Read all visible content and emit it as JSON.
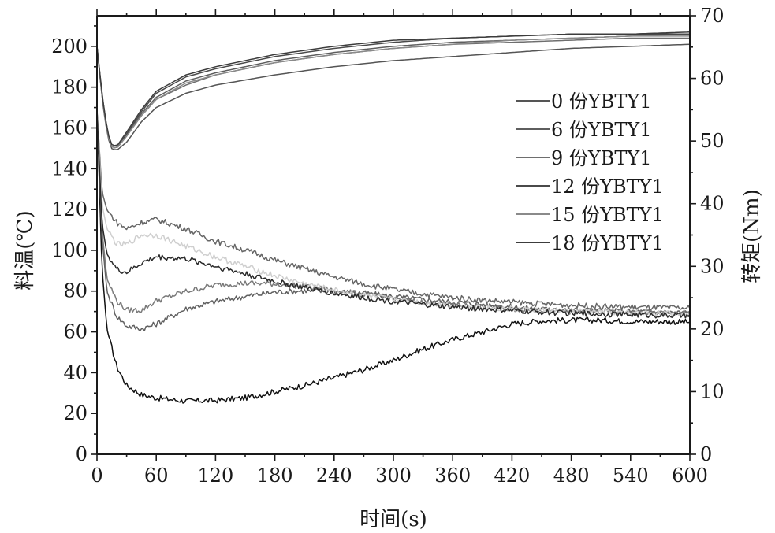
{
  "chart_data": {
    "type": "line",
    "xlabel": "时间(s)",
    "ylabel_left": "料温(℃)",
    "ylabel_right": "转矩(Nm)",
    "xlim": [
      0,
      600
    ],
    "ylim_left": [
      0,
      215
    ],
    "ylim_right": [
      0,
      70
    ],
    "x_ticks": [
      0,
      60,
      120,
      180,
      240,
      300,
      360,
      420,
      480,
      540,
      600
    ],
    "y_left_ticks": [
      0,
      20,
      40,
      60,
      80,
      100,
      120,
      140,
      160,
      180,
      200
    ],
    "y_right_ticks": [
      0,
      10,
      20,
      30,
      40,
      50,
      60,
      70
    ],
    "grid": false,
    "legend_position": "right",
    "temperature_series": [
      {
        "name": "0 份YBTY1",
        "color": "#555555",
        "x": [
          0,
          5,
          10,
          14,
          20,
          30,
          45,
          60,
          90,
          120,
          180,
          240,
          300,
          360,
          420,
          480,
          540,
          600
        ],
        "y": [
          200,
          175,
          158,
          150,
          149,
          153,
          163,
          170,
          177,
          181,
          186,
          190,
          193,
          195,
          197,
          199,
          200,
          201
        ]
      },
      {
        "name": "6 份YBTY1",
        "color": "#5e5e5e",
        "x": [
          0,
          5,
          10,
          14,
          20,
          30,
          45,
          60,
          90,
          120,
          180,
          240,
          300,
          360,
          420,
          480,
          540,
          600
        ],
        "y": [
          200,
          176,
          159,
          151,
          150,
          156,
          167,
          175,
          183,
          187,
          193,
          197,
          200,
          202,
          203,
          204,
          205,
          206
        ]
      },
      {
        "name": "9 份YBTY1",
        "color": "#6e6e6e",
        "x": [
          0,
          5,
          10,
          14,
          20,
          30,
          45,
          60,
          90,
          120,
          180,
          240,
          300,
          360,
          420,
          480,
          540,
          600
        ],
        "y": [
          200,
          176,
          159,
          151,
          150,
          156,
          166,
          174,
          181,
          186,
          192,
          196,
          199,
          201,
          202,
          203,
          204,
          204
        ]
      },
      {
        "name": "12 份YBTY1",
        "color": "#4a4a4a",
        "x": [
          0,
          5,
          10,
          14,
          20,
          30,
          45,
          60,
          90,
          120,
          180,
          240,
          300,
          360,
          420,
          480,
          540,
          600
        ],
        "y": [
          200,
          177,
          160,
          151,
          150,
          157,
          168,
          177,
          185,
          189,
          195,
          199,
          202,
          204,
          205,
          206,
          206,
          206
        ]
      },
      {
        "name": "15 份YBTY1",
        "color": "#8a8a8a",
        "x": [
          0,
          5,
          10,
          14,
          20,
          30,
          45,
          60,
          90,
          120,
          180,
          240,
          300,
          360,
          420,
          480,
          540,
          600
        ],
        "y": [
          200,
          176,
          159,
          151,
          150,
          156,
          166,
          174,
          182,
          186,
          192,
          196,
          199,
          201,
          203,
          204,
          205,
          205
        ]
      },
      {
        "name": "18 份YBTY1",
        "color": "#3c3c3c",
        "x": [
          0,
          5,
          10,
          14,
          20,
          30,
          45,
          60,
          90,
          120,
          180,
          240,
          300,
          360,
          420,
          480,
          540,
          600
        ],
        "y": [
          200,
          177,
          160,
          152,
          151,
          158,
          169,
          178,
          186,
          190,
          196,
          200,
          203,
          204,
          205,
          206,
          206,
          207
        ]
      }
    ],
    "torque_series": [
      {
        "name": "0 份YBTY1",
        "color": "#111111",
        "x": [
          0,
          5,
          10,
          20,
          30,
          45,
          60,
          90,
          120,
          150,
          180,
          210,
          240,
          270,
          300,
          330,
          360,
          390,
          420,
          450,
          480,
          510,
          540,
          570,
          600
        ],
        "y": [
          55,
          30,
          20,
          14,
          11,
          9.5,
          9,
          8.5,
          8.6,
          9,
          10,
          11,
          12.2,
          13.5,
          15,
          16.8,
          18.3,
          19.5,
          20.8,
          21.3,
          21.4,
          21.4,
          21.2,
          21.2,
          21.1
        ]
      },
      {
        "name": "6 份YBTY1",
        "color": "#606060",
        "x": [
          0,
          5,
          10,
          20,
          30,
          45,
          60,
          90,
          120,
          150,
          180,
          210,
          240,
          270,
          300,
          330,
          360,
          390,
          420,
          450,
          480,
          510,
          540,
          570,
          600
        ],
        "y": [
          55,
          35,
          26,
          22,
          20.5,
          20,
          20.8,
          23.2,
          24.4,
          25.2,
          25.9,
          26.1,
          26,
          25.7,
          25.2,
          24.7,
          24.3,
          23.9,
          23.5,
          23.2,
          23,
          22.9,
          22.8,
          22.7,
          22.6
        ]
      },
      {
        "name": "9 份YBTY1",
        "color": "#7a7a7a",
        "x": [
          0,
          5,
          10,
          20,
          30,
          45,
          60,
          90,
          120,
          150,
          180,
          210,
          240,
          270,
          300,
          330,
          360,
          390,
          420,
          450,
          480,
          510,
          540,
          570,
          600
        ],
        "y": [
          55,
          36,
          28,
          24.5,
          23,
          23,
          24.5,
          26,
          27,
          27.3,
          27.2,
          26.8,
          26.2,
          25.5,
          24.9,
          24.3,
          23.9,
          23.5,
          23.2,
          23,
          22.8,
          22.7,
          22.6,
          22.6,
          22.5
        ]
      },
      {
        "name": "12 份YBTY1",
        "color": "#666666",
        "x": [
          0,
          5,
          10,
          20,
          30,
          45,
          60,
          90,
          120,
          150,
          180,
          210,
          240,
          270,
          300,
          330,
          360,
          390,
          420,
          450,
          480,
          510,
          540,
          570,
          600
        ],
        "y": [
          55,
          42,
          39,
          37,
          36,
          37,
          37.5,
          36,
          34,
          32.6,
          31,
          29.6,
          28.3,
          27.2,
          26.3,
          25.6,
          25,
          24.6,
          24.3,
          24,
          23.8,
          23.6,
          23.5,
          23.4,
          23.3
        ]
      },
      {
        "name": "15 份YBTY1",
        "color": "#cfcfcf",
        "x": [
          0,
          5,
          10,
          20,
          30,
          45,
          60,
          90,
          120,
          150,
          180,
          210,
          240,
          270,
          300,
          330,
          360,
          390,
          420,
          450,
          480,
          510,
          540,
          570,
          600
        ],
        "y": [
          55,
          40,
          36,
          33.5,
          33.5,
          35,
          35,
          33.2,
          31.5,
          30,
          28.5,
          27.2,
          26.2,
          25.4,
          24.7,
          24.2,
          23.8,
          23.4,
          23.2,
          23,
          22.8,
          22.7,
          22.6,
          22.5,
          22.4
        ]
      },
      {
        "name": "18 份YBTY1",
        "color": "#2a2a2a",
        "x": [
          0,
          5,
          10,
          20,
          30,
          45,
          60,
          90,
          120,
          150,
          180,
          210,
          240,
          270,
          300,
          330,
          360,
          390,
          420,
          450,
          480,
          510,
          540,
          570,
          600
        ],
        "y": [
          55,
          37,
          32,
          29.5,
          29,
          30.5,
          31.5,
          31.2,
          30,
          28.8,
          27.6,
          26.6,
          25.7,
          25,
          24.4,
          23.9,
          23.5,
          23.2,
          22.9,
          22.7,
          22.5,
          22.4,
          22.3,
          22.2,
          22.1
        ]
      }
    ],
    "legend_entries": [
      "0 份YBTY1",
      "6 份YBTY1",
      "9 份YBTY1",
      "12 份YBTY1",
      "15 份YBTY1",
      "18 份YBTY1"
    ]
  }
}
